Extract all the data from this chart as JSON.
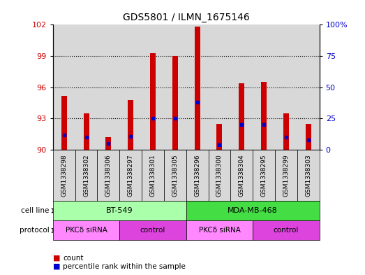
{
  "title": "GDS5801 / ILMN_1675146",
  "samples": [
    "GSM1338298",
    "GSM1338302",
    "GSM1338306",
    "GSM1338297",
    "GSM1338301",
    "GSM1338305",
    "GSM1338296",
    "GSM1338300",
    "GSM1338304",
    "GSM1338295",
    "GSM1338299",
    "GSM1338303"
  ],
  "count_values": [
    95.2,
    93.5,
    91.2,
    94.8,
    99.3,
    99.0,
    101.8,
    92.5,
    96.4,
    96.5,
    93.5,
    92.5
  ],
  "percentile_values": [
    12,
    10,
    5,
    11,
    25,
    25,
    38,
    4,
    20,
    20,
    10,
    8
  ],
  "y_min": 90,
  "y_max": 102,
  "y_ticks": [
    90,
    93,
    96,
    99,
    102
  ],
  "y2_ticks": [
    0,
    25,
    50,
    75,
    100
  ],
  "cell_lines": [
    {
      "label": "BT-549",
      "start": 0,
      "end": 6,
      "color": "#aaffaa"
    },
    {
      "label": "MDA-MB-468",
      "start": 6,
      "end": 12,
      "color": "#44dd44"
    }
  ],
  "protocols": [
    {
      "label": "PKCδ siRNA",
      "start": 0,
      "end": 3,
      "color": "#ff88ff"
    },
    {
      "label": "control",
      "start": 3,
      "end": 6,
      "color": "#dd44dd"
    },
    {
      "label": "PKCδ siRNA",
      "start": 6,
      "end": 9,
      "color": "#ff88ff"
    },
    {
      "label": "control",
      "start": 9,
      "end": 12,
      "color": "#dd44dd"
    }
  ],
  "bar_color": "#cc0000",
  "percentile_color": "#0000cc",
  "col_bg_color": "#d8d8d8",
  "left_axis_color": "#cc0000",
  "right_axis_color": "#0000cc",
  "cell_line_label": "cell line",
  "protocol_label": "protocol"
}
